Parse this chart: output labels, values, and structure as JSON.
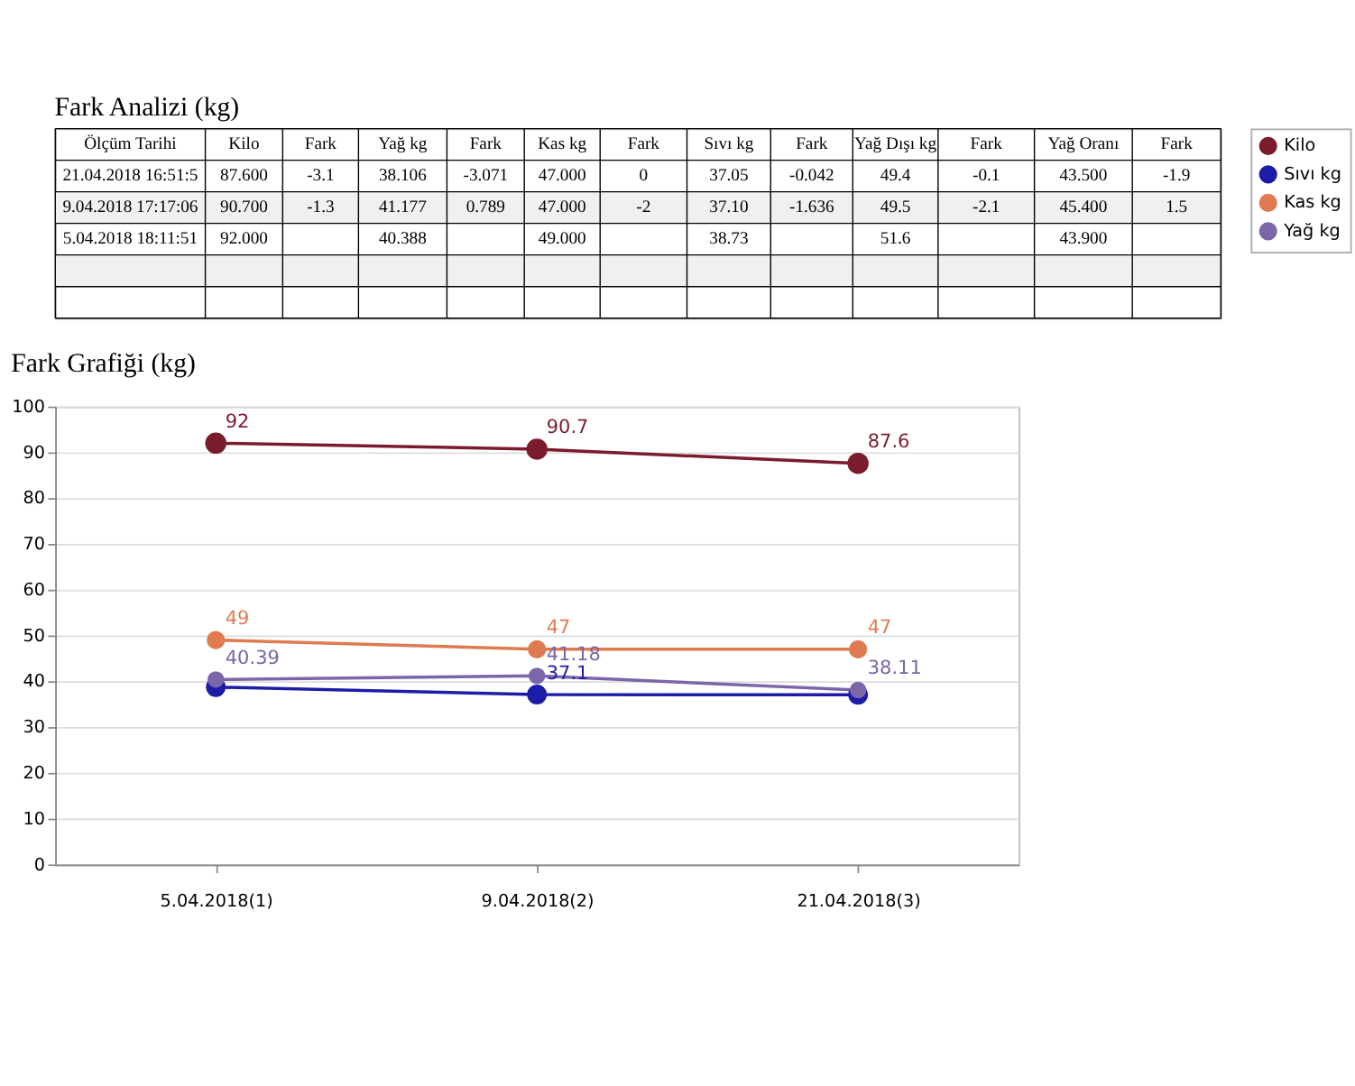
{
  "chart_data": [
    {
      "type": "other",
      "title": "Fark Analizi (kg)",
      "annotations": [
        "Ölçüm Tarihi",
        "Kilo",
        "Fark",
        "Yağ kg",
        "Fark",
        "Kas kg",
        "Fark",
        "Sıvı kg",
        "Fark",
        "Yağ Dışı kg",
        "Fark",
        "Yağ Oranı",
        "Fark",
        "21.04.2018  16:51:5",
        "87.600",
        "-3.1",
        "38.106",
        "-3.071",
        "47.000",
        "0",
        "37.05",
        "-0.042",
        "49.4",
        "-0.1",
        "43.500",
        "-1.9",
        "9.04.2018  17:17:06",
        "90.700",
        "-1.3",
        "41.177",
        "0.789",
        "47.000",
        "-2",
        "37.10",
        "-1.636",
        "49.5",
        "-2.1",
        "45.400",
        "1.5",
        "5.04.2018  18:11:51",
        "92.000",
        null,
        "40.388",
        null,
        "49.000",
        null,
        "38.73",
        null,
        "51.6",
        null,
        "43.900",
        null,
        null,
        null,
        null,
        null,
        null,
        null,
        null,
        null,
        null,
        null,
        null,
        null,
        null,
        null,
        null,
        null,
        null,
        null,
        null,
        null,
        null,
        null,
        null,
        null,
        null,
        null
      ]
    },
    {
      "type": "line",
      "title": "Fark Grafiği (kg)",
      "categories": [
        "5.04.2018(1)",
        "9.04.2018(2)",
        "21.04.2018(3)"
      ],
      "series": [
        {
          "name": "Kilo",
          "color": "#7b1c2c",
          "values": [
            92,
            90.7,
            87.6
          ],
          "value_labels": [
            "92",
            "90.7",
            "87.6"
          ]
        },
        {
          "name": "Sıvı kg",
          "color": "#1c1ca8",
          "values": [
            38.73,
            37.1,
            37.05
          ],
          "value_labels": [
            null,
            "37.1",
            null
          ]
        },
        {
          "name": "Kas kg",
          "color": "#e07a50",
          "values": [
            49,
            47,
            47
          ],
          "value_labels": [
            "49",
            "47",
            "47"
          ]
        },
        {
          "name": "Yağ kg",
          "color": "#7a66a8",
          "values": [
            40.39,
            41.18,
            38.11
          ],
          "value_labels": [
            "40.39",
            "41.18",
            "38.11"
          ]
        }
      ],
      "ylim": [
        0,
        100
      ],
      "yticks": [
        0,
        10,
        20,
        30,
        40,
        50,
        60,
        70,
        80,
        90,
        100
      ],
      "grid": "y",
      "legend": "top right",
      "marker": "circle",
      "line_style": "solid"
    }
  ]
}
